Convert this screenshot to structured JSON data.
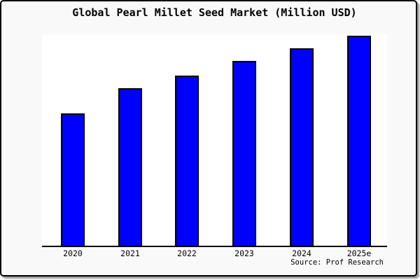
{
  "source_label": "Source: Prof Research",
  "colors": {
    "bar_fill": "#0000ff",
    "bar_border": "#000000",
    "card_background": "#f9f9f9",
    "plot_background": "#ffffff",
    "axis": "#000000",
    "text": "#000000",
    "card_border": "#000000"
  },
  "chart_data": {
    "type": "bar",
    "title": "Global Pearl Millet Seed Market (Million USD)",
    "categories": [
      "2020",
      "2021",
      "2022",
      "2023",
      "2024",
      "2025e"
    ],
    "values": [
      63,
      75,
      81,
      88,
      94,
      100
    ],
    "xlabel": "",
    "ylabel": "",
    "ylim": [
      0,
      101
    ],
    "grid": false,
    "legend": false,
    "y_axis_labels_visible": false,
    "note": "No y-axis scale is shown in the figure; values are relative estimates of bar heights normalized so the 2025e bar equals 100."
  }
}
